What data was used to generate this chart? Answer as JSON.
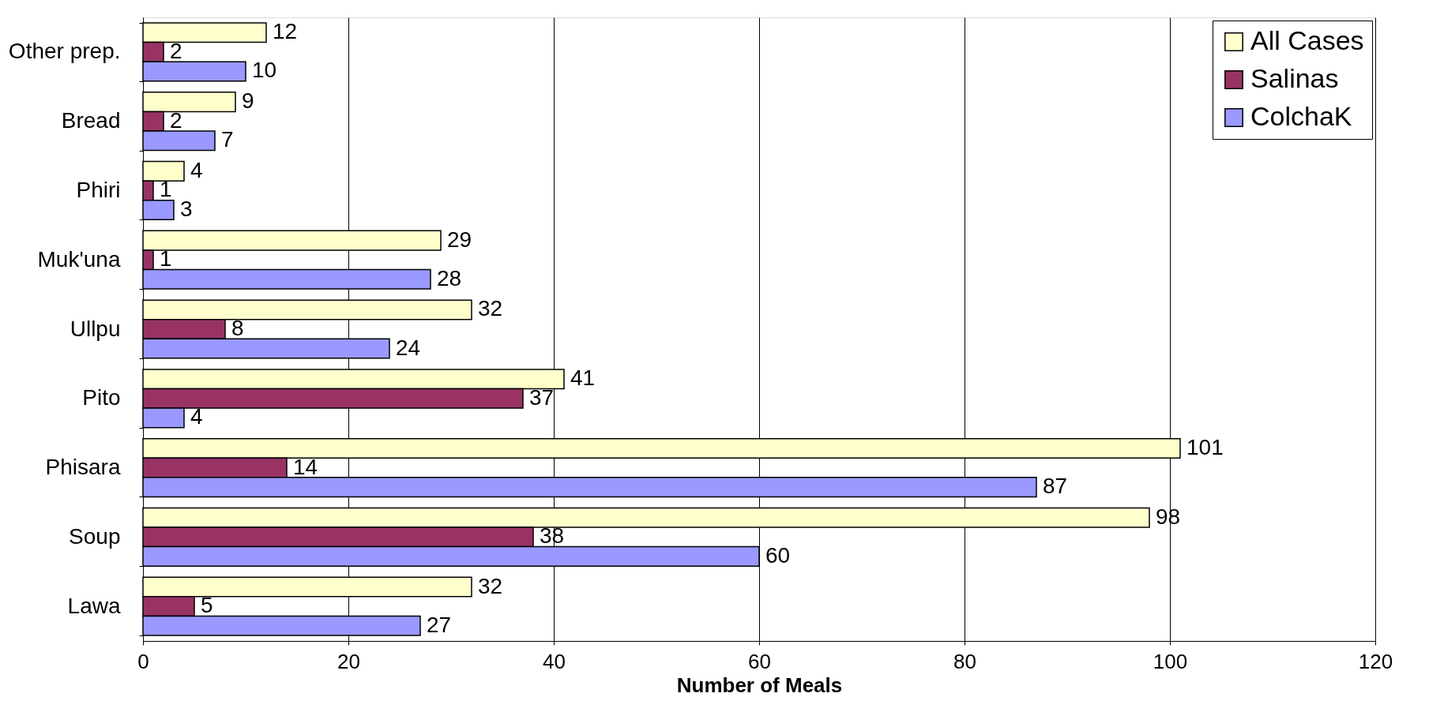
{
  "chart_data": {
    "type": "bar",
    "orientation": "horizontal",
    "xlabel": "Number of Meals",
    "categories": [
      "Other prep.",
      "Bread",
      "Phiri",
      "Muk'una",
      "Ullpu",
      "Pito",
      "Phisara",
      "Soup",
      "Lawa"
    ],
    "series": [
      {
        "name": "All Cases",
        "color": "#ffffcc",
        "values": [
          12,
          9,
          4,
          29,
          32,
          41,
          101,
          98,
          32
        ]
      },
      {
        "name": "Salinas",
        "color": "#993366",
        "values": [
          2,
          2,
          1,
          1,
          8,
          37,
          14,
          38,
          5
        ]
      },
      {
        "name": "ColchaK",
        "color": "#9999ff",
        "values": [
          10,
          7,
          3,
          28,
          24,
          4,
          87,
          60,
          27
        ]
      }
    ],
    "xlim": [
      0,
      120
    ],
    "xticks": [
      0,
      20,
      40,
      60,
      80,
      100,
      120
    ],
    "grid": "x",
    "legend": "top right",
    "data_labels": true
  }
}
